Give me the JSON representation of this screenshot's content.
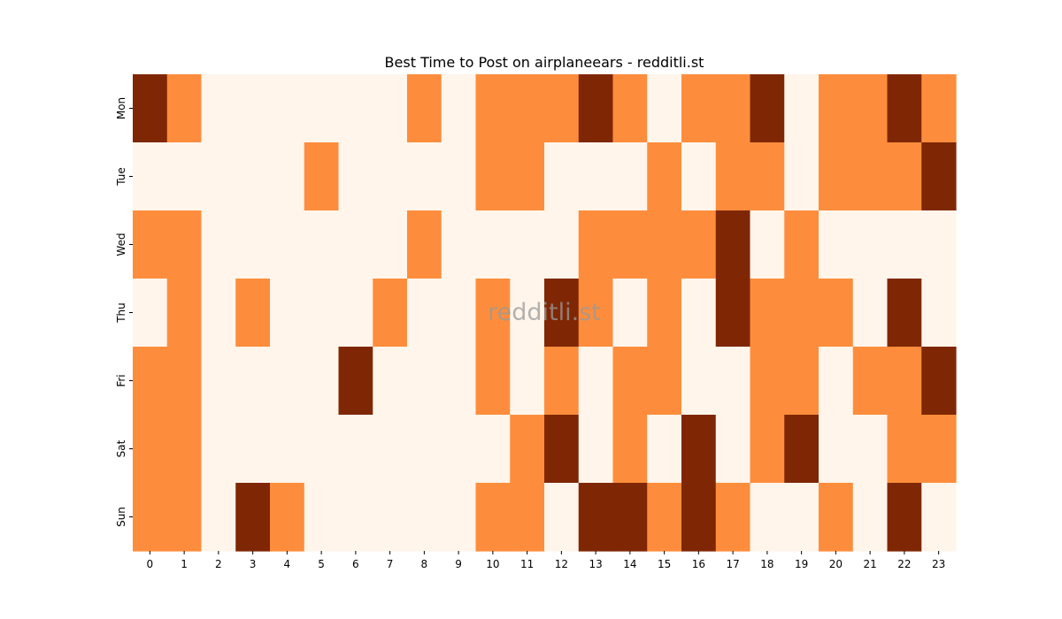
{
  "chart_data": {
    "type": "heatmap",
    "title": "Best Time to Post on airplaneears - redditli.st",
    "watermark": "redditli.st",
    "x_categories": [
      "0",
      "1",
      "2",
      "3",
      "4",
      "5",
      "6",
      "7",
      "8",
      "9",
      "10",
      "11",
      "12",
      "13",
      "14",
      "15",
      "16",
      "17",
      "18",
      "19",
      "20",
      "21",
      "22",
      "23"
    ],
    "y_categories": [
      "Mon",
      "Tue",
      "Wed",
      "Thu",
      "Fri",
      "Sat",
      "Sun"
    ],
    "values": [
      [
        2,
        1,
        0,
        0,
        0,
        0,
        0,
        0,
        1,
        0,
        1,
        1,
        1,
        2,
        1,
        0,
        1,
        1,
        2,
        0,
        1,
        1,
        2,
        1
      ],
      [
        0,
        0,
        0,
        0,
        0,
        1,
        0,
        0,
        0,
        0,
        1,
        1,
        0,
        0,
        0,
        1,
        0,
        1,
        1,
        0,
        1,
        1,
        1,
        2
      ],
      [
        1,
        1,
        0,
        0,
        0,
        0,
        0,
        0,
        1,
        0,
        0,
        0,
        0,
        1,
        1,
        1,
        1,
        2,
        0,
        1,
        0,
        0,
        0,
        0
      ],
      [
        0,
        1,
        0,
        1,
        0,
        0,
        0,
        1,
        0,
        0,
        1,
        0,
        2,
        1,
        0,
        1,
        0,
        2,
        1,
        1,
        1,
        0,
        2,
        0
      ],
      [
        1,
        1,
        0,
        0,
        0,
        0,
        2,
        0,
        0,
        0,
        1,
        0,
        1,
        0,
        1,
        1,
        0,
        0,
        1,
        1,
        0,
        1,
        1,
        2
      ],
      [
        1,
        1,
        0,
        0,
        0,
        0,
        0,
        0,
        0,
        0,
        0,
        1,
        2,
        0,
        1,
        0,
        2,
        0,
        1,
        2,
        0,
        0,
        1,
        1
      ],
      [
        1,
        1,
        0,
        2,
        1,
        0,
        0,
        0,
        0,
        0,
        1,
        1,
        0,
        2,
        2,
        1,
        2,
        1,
        0,
        0,
        1,
        0,
        2,
        0
      ]
    ],
    "colors": [
      "#fff5eb",
      "#fd8d3c",
      "#7f2704"
    ],
    "colorbar": false
  }
}
